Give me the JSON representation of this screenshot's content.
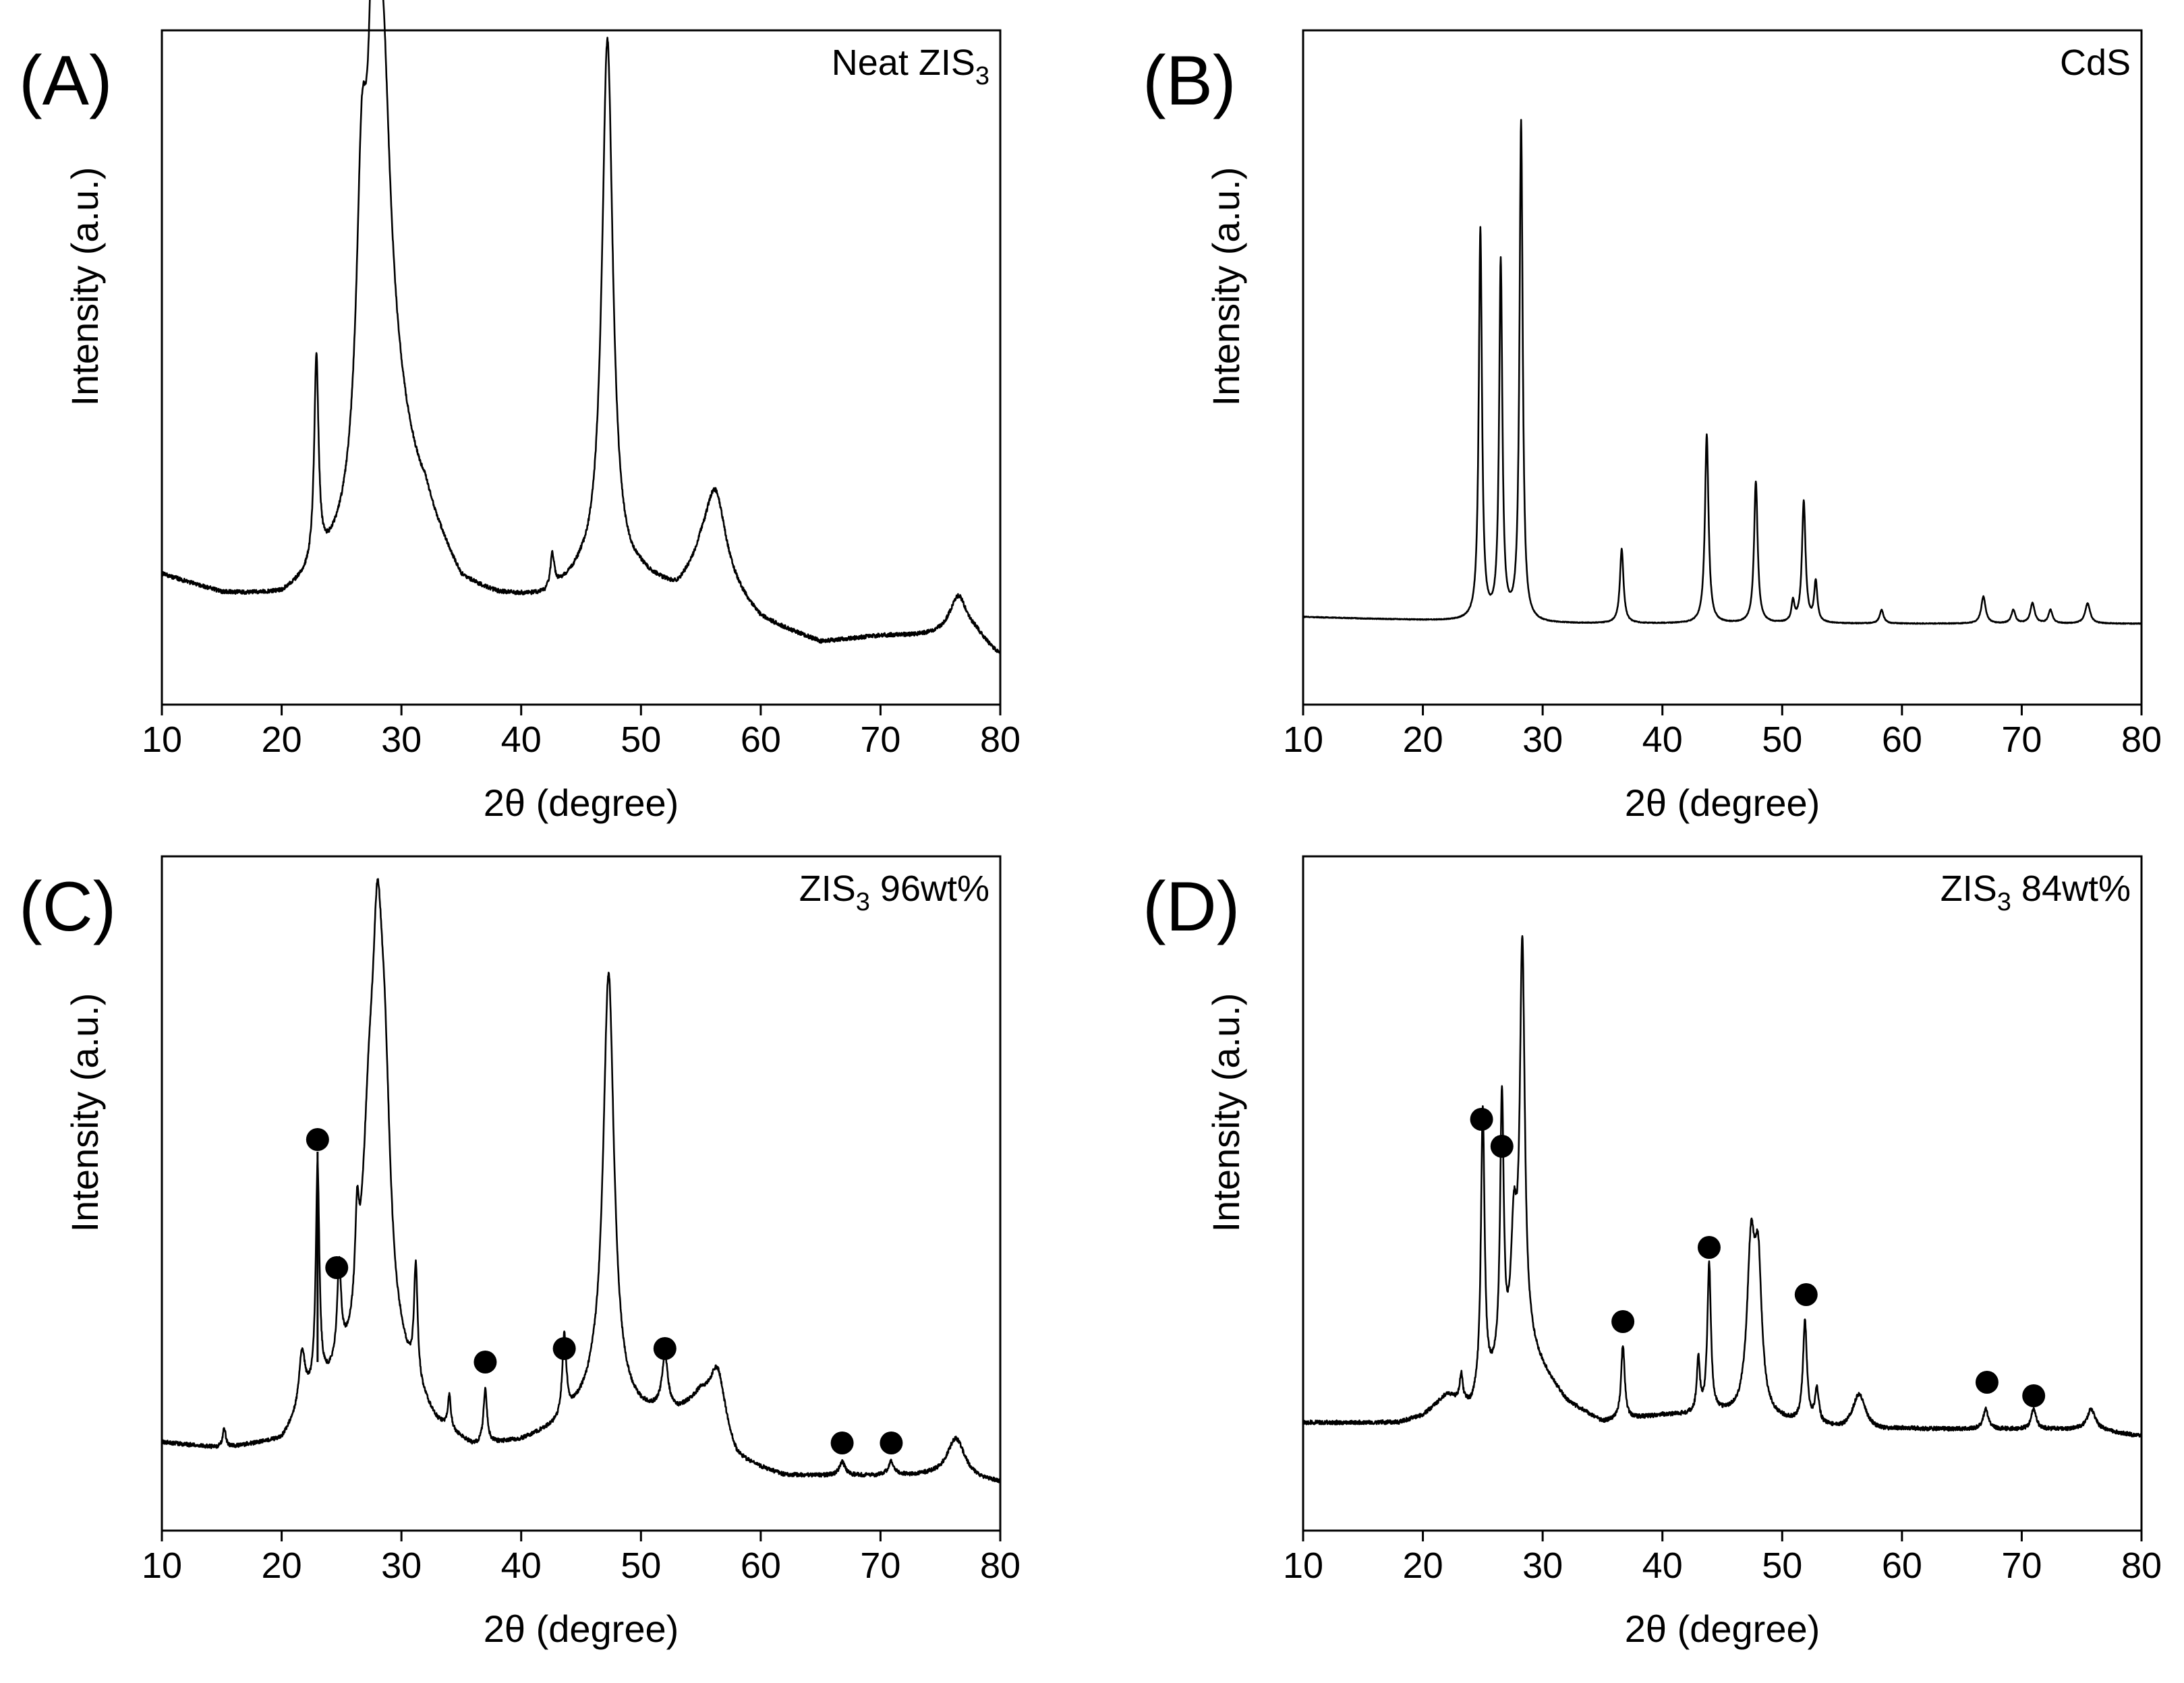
{
  "chart_data": [
    {
      "type": "line",
      "panel_label": "(A)",
      "sample_label": {
        "main": "Neat ZIS",
        "sub": "3",
        "suffix": ""
      },
      "xlabel": "2θ (degree)",
      "ylabel": "Intensity (a.u.)",
      "xlim": [
        10,
        80
      ],
      "ylim": [
        0,
        100
      ],
      "xticks": [
        "10",
        "20",
        "30",
        "40",
        "50",
        "60",
        "70",
        "80"
      ],
      "baseline": [
        [
          10,
          19
        ],
        [
          15,
          16
        ],
        [
          20,
          15
        ],
        [
          23,
          17
        ],
        [
          26,
          20
        ],
        [
          32,
          24
        ],
        [
          35,
          16
        ],
        [
          38,
          15
        ],
        [
          42,
          15
        ],
        [
          45,
          18
        ],
        [
          50,
          18
        ],
        [
          53,
          16
        ],
        [
          55,
          19
        ],
        [
          58,
          15
        ],
        [
          60,
          12
        ],
        [
          65,
          9
        ],
        [
          70,
          10
        ],
        [
          74,
          10
        ],
        [
          78,
          10
        ],
        [
          80,
          7
        ]
      ],
      "peaks": [
        {
          "pos": 22.9,
          "height": 31,
          "width": 0.22
        },
        {
          "pos": 26.7,
          "height": 43,
          "width": 0.55
        },
        {
          "pos": 27.6,
          "height": 45,
          "width": 0.45
        },
        {
          "pos": 28.4,
          "height": 55,
          "width": 0.8
        },
        {
          "pos": 29.2,
          "height": 17,
          "width": 2.2
        },
        {
          "pos": 42.6,
          "height": 5,
          "width": 0.2
        },
        {
          "pos": 47.2,
          "height": 80,
          "width": 0.55
        },
        {
          "pos": 56.2,
          "height": 14,
          "width": 1.1
        },
        {
          "pos": 76.5,
          "height": 6,
          "width": 0.9
        }
      ],
      "markers": []
    },
    {
      "type": "line",
      "panel_label": "(B)",
      "sample_label": {
        "main": "CdS",
        "sub": "",
        "suffix": ""
      },
      "xlabel": "2θ (degree)",
      "ylabel": "Intensity (a.u.)",
      "xlim": [
        10,
        80
      ],
      "ylim": [
        0,
        100
      ],
      "xticks": [
        "10",
        "20",
        "30",
        "40",
        "50",
        "60",
        "70",
        "80"
      ],
      "baseline": [
        [
          10,
          13
        ],
        [
          30,
          12
        ],
        [
          50,
          12
        ],
        [
          80,
          12
        ]
      ],
      "peaks": [
        {
          "pos": 24.8,
          "height": 58,
          "width": 0.16
        },
        {
          "pos": 26.5,
          "height": 53,
          "width": 0.16
        },
        {
          "pos": 28.2,
          "height": 74,
          "width": 0.16
        },
        {
          "pos": 36.6,
          "height": 11,
          "width": 0.18
        },
        {
          "pos": 43.7,
          "height": 28,
          "width": 0.18
        },
        {
          "pos": 47.8,
          "height": 21,
          "width": 0.18
        },
        {
          "pos": 50.9,
          "height": 3,
          "width": 0.15
        },
        {
          "pos": 51.8,
          "height": 18,
          "width": 0.18
        },
        {
          "pos": 52.8,
          "height": 6,
          "width": 0.16
        },
        {
          "pos": 58.3,
          "height": 2,
          "width": 0.2
        },
        {
          "pos": 66.8,
          "height": 4,
          "width": 0.22
        },
        {
          "pos": 69.3,
          "height": 2,
          "width": 0.2
        },
        {
          "pos": 70.9,
          "height": 3,
          "width": 0.22
        },
        {
          "pos": 72.4,
          "height": 2,
          "width": 0.2
        },
        {
          "pos": 75.5,
          "height": 3,
          "width": 0.25
        }
      ],
      "markers": []
    },
    {
      "type": "line",
      "panel_label": "(C)",
      "sample_label": {
        "main": "ZIS",
        "sub": "3",
        "suffix": " 96wt%"
      },
      "xlabel": "2θ (degree)",
      "ylabel": "Intensity (a.u.)",
      "xlim": [
        10,
        80
      ],
      "ylim": [
        0,
        100
      ],
      "xticks": [
        "10",
        "20",
        "30",
        "40",
        "50",
        "60",
        "70",
        "80"
      ],
      "baseline": [
        [
          10,
          13
        ],
        [
          15,
          12
        ],
        [
          20,
          13
        ],
        [
          22,
          18
        ],
        [
          25,
          22
        ],
        [
          30,
          22
        ],
        [
          33,
          15
        ],
        [
          36,
          12
        ],
        [
          40,
          13
        ],
        [
          43,
          15
        ],
        [
          46,
          19
        ],
        [
          50,
          17
        ],
        [
          53,
          17
        ],
        [
          55,
          19
        ],
        [
          58,
          10
        ],
        [
          62,
          8
        ],
        [
          66,
          8
        ],
        [
          70,
          8
        ],
        [
          74,
          8
        ],
        [
          80,
          7
        ]
      ],
      "peaks": [
        {
          "pos": 15.2,
          "height": 3,
          "width": 0.15
        },
        {
          "pos": 21.7,
          "height": 8,
          "width": 0.3
        },
        {
          "pos": 23.0,
          "height": 33,
          "width": 0.18
        },
        {
          "pos": 24.8,
          "height": 14,
          "width": 0.2
        },
        {
          "pos": 26.3,
          "height": 13,
          "width": 0.2
        },
        {
          "pos": 27.3,
          "height": 30,
          "width": 0.7
        },
        {
          "pos": 28.0,
          "height": 42,
          "width": 0.5
        },
        {
          "pos": 28.6,
          "height": 34,
          "width": 0.6
        },
        {
          "pos": 31.2,
          "height": 17,
          "width": 0.18
        },
        {
          "pos": 34.0,
          "height": 5,
          "width": 0.15
        },
        {
          "pos": 37.0,
          "height": 8,
          "width": 0.18
        },
        {
          "pos": 43.6,
          "height": 12,
          "width": 0.2
        },
        {
          "pos": 47.3,
          "height": 64,
          "width": 0.55
        },
        {
          "pos": 52.0,
          "height": 8,
          "width": 0.3
        },
        {
          "pos": 56.4,
          "height": 9,
          "width": 0.8
        },
        {
          "pos": 66.8,
          "height": 2,
          "width": 0.3
        },
        {
          "pos": 70.9,
          "height": 2,
          "width": 0.3
        },
        {
          "pos": 76.3,
          "height": 6,
          "width": 0.9
        }
      ],
      "markers": [
        {
          "x": 23.0,
          "y": 58,
          "stem_to": 25
        },
        {
          "x": 24.6,
          "y": 39
        },
        {
          "x": 37.0,
          "y": 25
        },
        {
          "x": 43.6,
          "y": 27
        },
        {
          "x": 52.0,
          "y": 27
        },
        {
          "x": 66.8,
          "y": 13
        },
        {
          "x": 70.9,
          "y": 13
        }
      ]
    },
    {
      "type": "line",
      "panel_label": "(D)",
      "sample_label": {
        "main": "ZIS",
        "sub": "3",
        "suffix": " 84wt%"
      },
      "xlabel": "2θ (degree)",
      "ylabel": "Intensity (a.u.)",
      "xlim": [
        10,
        80
      ],
      "ylim": [
        0,
        100
      ],
      "xticks": [
        "10",
        "20",
        "30",
        "40",
        "50",
        "60",
        "70",
        "80"
      ],
      "baseline": [
        [
          10,
          16
        ],
        [
          18,
          16
        ],
        [
          20,
          17
        ],
        [
          22,
          20
        ],
        [
          24,
          18
        ],
        [
          26,
          22
        ],
        [
          29,
          26
        ],
        [
          32,
          19
        ],
        [
          35,
          16
        ],
        [
          40,
          17
        ],
        [
          45,
          17
        ],
        [
          50,
          16
        ],
        [
          54,
          15
        ],
        [
          56,
          14
        ],
        [
          60,
          15
        ],
        [
          66,
          15
        ],
        [
          72,
          15
        ],
        [
          76,
          15
        ],
        [
          80,
          14
        ]
      ],
      "peaks": [
        {
          "pos": 23.2,
          "height": 4,
          "width": 0.15
        },
        {
          "pos": 25.0,
          "height": 42,
          "width": 0.18
        },
        {
          "pos": 26.6,
          "height": 40,
          "width": 0.18
        },
        {
          "pos": 27.6,
          "height": 18,
          "width": 0.3
        },
        {
          "pos": 28.3,
          "height": 60,
          "width": 0.25
        },
        {
          "pos": 36.7,
          "height": 11,
          "width": 0.18
        },
        {
          "pos": 43.0,
          "height": 8,
          "width": 0.15
        },
        {
          "pos": 43.9,
          "height": 22,
          "width": 0.18
        },
        {
          "pos": 47.4,
          "height": 24,
          "width": 0.4
        },
        {
          "pos": 48.0,
          "height": 20,
          "width": 0.35
        },
        {
          "pos": 51.9,
          "height": 15,
          "width": 0.2
        },
        {
          "pos": 52.9,
          "height": 5,
          "width": 0.2
        },
        {
          "pos": 56.4,
          "height": 6,
          "width": 0.7
        },
        {
          "pos": 67.0,
          "height": 3,
          "width": 0.25
        },
        {
          "pos": 71.0,
          "height": 3,
          "width": 0.25
        },
        {
          "pos": 75.8,
          "height": 3,
          "width": 0.4
        }
      ],
      "markers": [
        {
          "x": 24.9,
          "y": 61
        },
        {
          "x": 26.6,
          "y": 57
        },
        {
          "x": 36.7,
          "y": 31
        },
        {
          "x": 43.9,
          "y": 42
        },
        {
          "x": 52.0,
          "y": 35
        },
        {
          "x": 67.1,
          "y": 22
        },
        {
          "x": 71.0,
          "y": 20
        }
      ]
    }
  ]
}
